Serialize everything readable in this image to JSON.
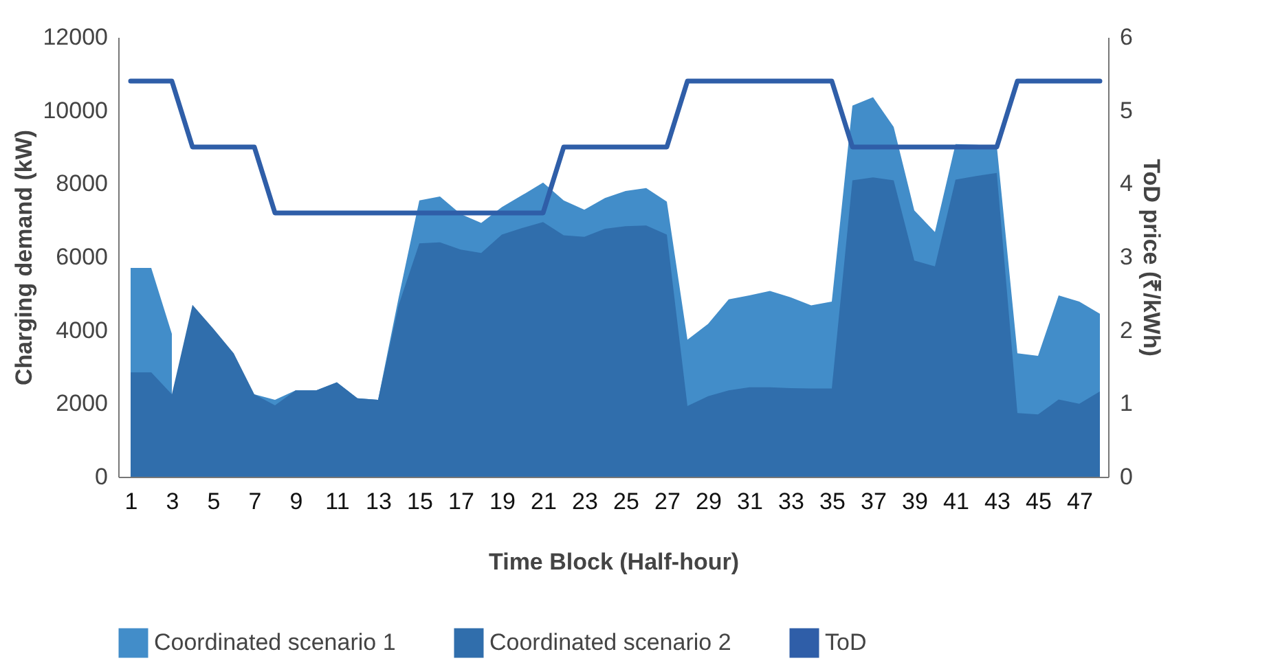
{
  "chart_data": {
    "type": "area",
    "xlabel": "Time Block (Half-hour)",
    "ylabel": "Charging demand (kW)",
    "y2label": "ToD price (₹/kWh)",
    "x": [
      1,
      2,
      3,
      4,
      5,
      6,
      7,
      8,
      9,
      10,
      11,
      12,
      13,
      14,
      15,
      16,
      17,
      18,
      19,
      20,
      21,
      22,
      23,
      24,
      25,
      26,
      27,
      28,
      29,
      30,
      31,
      32,
      33,
      34,
      35,
      36,
      37,
      38,
      39,
      40,
      41,
      42,
      43,
      44,
      45,
      46,
      47,
      48
    ],
    "series": [
      {
        "name": "Coordinated scenario 1",
        "color": "#428dc9",
        "values": [
          5700,
          5700,
          3900,
          null,
          null,
          null,
          2250,
          2100,
          2360,
          2360,
          2580,
          2140,
          2100,
          4900,
          7540,
          7650,
          7170,
          6930,
          7360,
          7690,
          8030,
          7540,
          7290,
          7610,
          7800,
          7880,
          7510,
          3740,
          4170,
          4840,
          4950,
          5070,
          4900,
          4680,
          4780,
          10130,
          10360,
          9550,
          7270,
          6680,
          9080,
          9060,
          9030,
          3370,
          3300,
          4950,
          4780,
          4450
        ]
      },
      {
        "name": "Coordinated scenario 2",
        "color": "#306eac",
        "values": [
          2850,
          2850,
          2250,
          4690,
          4050,
          3370,
          2250,
          1950,
          2360,
          2360,
          2580,
          2140,
          2100,
          4690,
          6370,
          6400,
          6200,
          6110,
          6610,
          6790,
          6950,
          6590,
          6550,
          6770,
          6840,
          6860,
          6610,
          1930,
          2200,
          2360,
          2440,
          2440,
          2420,
          2410,
          2410,
          8090,
          8170,
          8090,
          5900,
          5740,
          8110,
          8210,
          8290,
          1740,
          1700,
          2110,
          1990,
          2330
        ]
      },
      {
        "name": "ToD",
        "type": "line",
        "axis": "y2",
        "color": "#2f5ea8",
        "values": [
          5.4,
          5.4,
          5.4,
          4.5,
          4.5,
          4.5,
          4.5,
          3.6,
          3.6,
          3.6,
          3.6,
          3.6,
          3.6,
          3.6,
          3.6,
          3.6,
          3.6,
          3.6,
          3.6,
          3.6,
          3.6,
          4.5,
          4.5,
          4.5,
          4.5,
          4.5,
          4.5,
          5.4,
          5.4,
          5.4,
          5.4,
          5.4,
          5.4,
          5.4,
          5.4,
          4.5,
          4.5,
          4.5,
          4.5,
          4.5,
          4.5,
          4.5,
          4.5,
          5.4,
          5.4,
          5.4,
          5.4,
          5.4
        ]
      }
    ],
    "xlim": [
      0.4,
      48.4
    ],
    "xticks": [
      1,
      3,
      5,
      7,
      9,
      11,
      13,
      15,
      17,
      19,
      21,
      23,
      25,
      27,
      29,
      31,
      33,
      35,
      37,
      39,
      41,
      43,
      45,
      47
    ],
    "ylim": [
      0,
      12000
    ],
    "yticks": [
      0,
      2000,
      4000,
      6000,
      8000,
      10000,
      12000
    ],
    "y2lim": [
      0,
      6
    ],
    "y2ticks": [
      0,
      1,
      2,
      3,
      4,
      5,
      6
    ],
    "grid": false,
    "legend": "bottom"
  }
}
